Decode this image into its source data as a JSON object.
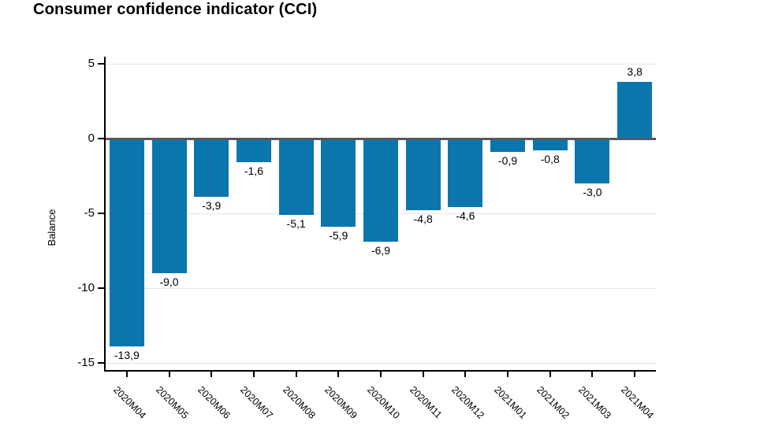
{
  "title": "Consumer confidence indicator (CCI)",
  "chart_data": {
    "type": "bar",
    "title": "Consumer confidence indicator (CCI)",
    "xlabel": "",
    "ylabel": "Balance",
    "categories": [
      "2020M04",
      "2020M05",
      "2020M06",
      "2020M07",
      "2020M08",
      "2020M09",
      "2020M10",
      "2020M11",
      "2020M12",
      "2021M01",
      "2021M02",
      "2021M03",
      "2021M04"
    ],
    "values": [
      -13.9,
      -9.0,
      -3.9,
      -1.6,
      -5.1,
      -5.9,
      -6.9,
      -4.8,
      -4.6,
      -0.9,
      -0.8,
      -3.0,
      3.8
    ],
    "value_labels": [
      "-13,9",
      "-9,0",
      "-3,9",
      "-1,6",
      "-5,1",
      "-5,9",
      "-6,9",
      "-4,8",
      "-4,6",
      "-0,9",
      "-0,8",
      "-3,0",
      "3,8"
    ],
    "yticks": [
      5,
      0,
      -5,
      -10,
      -15
    ],
    "ytick_labels": [
      "5",
      "0",
      "-5",
      "-10",
      "-15"
    ],
    "ylim": [
      -15.5,
      5.5
    ],
    "grid": true,
    "legend": false,
    "decimal_separator": ",",
    "bar_color": "#0b76ad",
    "zero_line_color": "#58595b",
    "grid_color": "#e4e4e4",
    "axis_color": "#000000",
    "text_color": "#000000"
  }
}
